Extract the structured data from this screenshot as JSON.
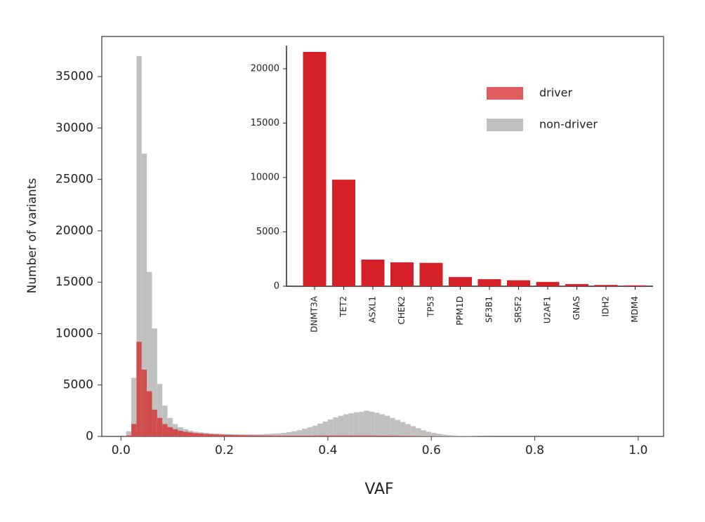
{
  "chart_data": [
    {
      "type": "histogram",
      "xlabel": "VAF",
      "ylabel": "Number of variants",
      "bins": [
        0,
        0.01,
        0.02,
        0.03,
        0.04,
        0.05,
        0.06,
        0.07,
        0.08,
        0.09,
        0.1,
        0.11,
        0.12,
        0.13,
        0.14,
        0.15,
        0.16,
        0.17,
        0.18,
        0.19,
        0.2,
        0.21,
        0.22,
        0.23,
        0.24,
        0.25,
        0.26,
        0.27,
        0.28,
        0.29,
        0.3,
        0.31,
        0.32,
        0.33,
        0.34,
        0.35,
        0.36,
        0.37,
        0.38,
        0.39,
        0.4,
        0.41,
        0.42,
        0.43,
        0.44,
        0.45,
        0.46,
        0.47,
        0.48,
        0.49,
        0.5,
        0.51,
        0.52,
        0.53,
        0.54,
        0.55,
        0.56,
        0.57,
        0.58,
        0.59,
        0.6,
        0.61,
        0.62,
        0.63,
        0.64,
        0.65,
        0.66,
        0.67,
        0.68,
        0.69,
        0.7,
        0.71,
        0.72
      ],
      "series": [
        {
          "name": "non-driver",
          "color": "#c0c0c0",
          "alpha": 1,
          "values": [
            0,
            500,
            5700,
            37000,
            27500,
            16000,
            10500,
            5100,
            3000,
            1800,
            1200,
            900,
            700,
            550,
            450,
            400,
            350,
            300,
            280,
            250,
            230,
            220,
            210,
            200,
            200,
            200,
            210,
            220,
            240,
            270,
            300,
            350,
            420,
            500,
            600,
            750,
            900,
            1050,
            1250,
            1450,
            1650,
            1850,
            2000,
            2150,
            2250,
            2350,
            2400,
            2500,
            2400,
            2300,
            2150,
            2000,
            1800,
            1600,
            1400,
            1200,
            1000,
            800,
            600,
            450,
            350,
            250,
            180,
            130,
            90,
            60,
            40,
            25,
            15,
            10,
            5,
            3
          ]
        },
        {
          "name": "driver",
          "color": "#d62728",
          "alpha": 0.75,
          "values": [
            0,
            100,
            1200,
            9200,
            6500,
            4400,
            2600,
            1800,
            1200,
            900,
            700,
            550,
            450,
            380,
            320,
            280,
            240,
            210,
            190,
            170,
            150,
            140,
            130,
            120,
            110,
            100,
            95,
            90,
            85,
            80,
            75,
            70,
            70,
            70,
            70,
            70,
            70,
            75,
            75,
            80,
            80,
            80,
            80,
            80,
            80,
            80,
            80,
            80,
            80,
            75,
            70,
            65,
            60,
            55,
            50,
            45,
            40,
            35,
            30,
            25,
            20,
            15,
            12,
            10,
            8,
            6,
            5,
            4,
            3,
            2,
            1,
            1
          ]
        }
      ],
      "xlim": [
        -0.037,
        1.049
      ],
      "ylim": [
        0,
        38900
      ],
      "xticks": [
        {
          "value": 0,
          "label": "0.0"
        },
        0.2,
        0.4,
        0.6,
        0.8,
        {
          "value": 1,
          "label": "1.0"
        }
      ],
      "yticks": [
        0,
        5000,
        10000,
        15000,
        20000,
        25000,
        30000,
        35000
      ],
      "legend": "upper right"
    },
    {
      "type": "bar",
      "categories": [
        "DNMT3A",
        "TET2",
        "ASXL1",
        "CHEK2",
        "TP53",
        "PPM1D",
        "SF3B1",
        "SRSF2",
        "U2AF1",
        "GNAS",
        "IDH2",
        "MDM4"
      ],
      "values": [
        21550,
        9800,
        2450,
        2200,
        2150,
        850,
        650,
        550,
        400,
        200,
        120,
        80
      ],
      "color": "#d42026",
      "ylim": [
        0,
        22130
      ],
      "yticks": [
        0,
        5000,
        10000,
        15000,
        20000
      ]
    }
  ]
}
